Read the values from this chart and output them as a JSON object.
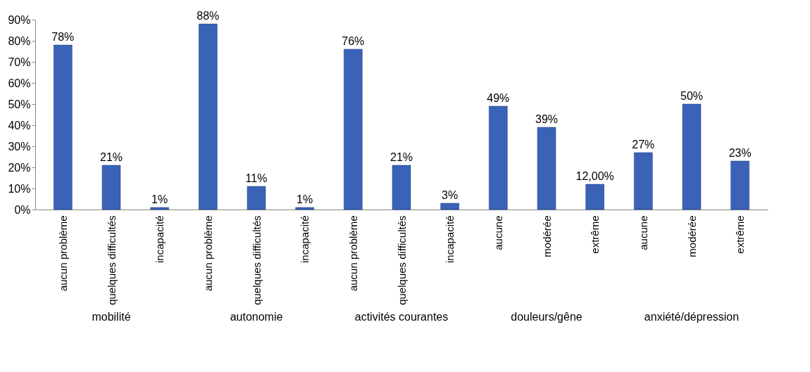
{
  "chart_data": {
    "type": "bar",
    "categories": [
      "aucun problème",
      "quelques difficultés",
      "incapacité",
      "aucun problème",
      "quelques difficultés",
      "incapacité",
      "aucun problème",
      "quelques difficultés",
      "incapacité",
      "aucune",
      "modérée",
      "extrême",
      "aucune",
      "modérée",
      "extrême"
    ],
    "values": [
      78,
      21,
      1,
      88,
      11,
      1,
      76,
      21,
      3,
      49,
      39,
      12,
      27,
      50,
      23
    ],
    "value_labels": [
      "78%",
      "21%",
      "1%",
      "88%",
      "11%",
      "1%",
      "76%",
      "21%",
      "3%",
      "49%",
      "39%",
      "12,00%",
      "27%",
      "50%",
      "23%"
    ],
    "color": "#3a63b8",
    "ylim": [
      0,
      90
    ],
    "yticks": [
      {
        "value": 0,
        "label": "0%"
      },
      {
        "value": 10,
        "label": "10%"
      },
      {
        "value": 20,
        "label": "20%"
      },
      {
        "value": 30,
        "label": "30%"
      },
      {
        "value": 40,
        "label": "40%"
      },
      {
        "value": 50,
        "label": "50%"
      },
      {
        "value": 60,
        "label": "60%"
      },
      {
        "value": 70,
        "label": "70%"
      },
      {
        "value": 80,
        "label": "80%"
      },
      {
        "value": 90,
        "label": "90%"
      }
    ],
    "annotations": [
      "mobilité",
      "autonomie",
      "activités courantes",
      "douleurs/gêne",
      "anxiété/dépression"
    ],
    "grid": false
  }
}
